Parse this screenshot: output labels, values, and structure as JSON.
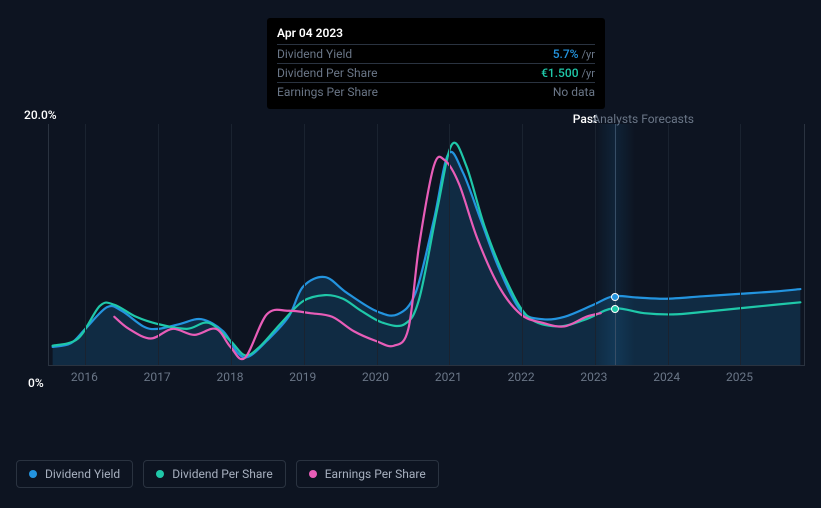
{
  "tooltip": {
    "date": "Apr 04 2023",
    "rows": [
      {
        "label": "Dividend Yield",
        "value": "5.7%",
        "unit": "/yr",
        "cls": "val-yield"
      },
      {
        "label": "Dividend Per Share",
        "value": "€1.500",
        "unit": "/yr",
        "cls": "val-dps"
      },
      {
        "label": "Earnings Per Share",
        "value": "No data",
        "unit": "",
        "cls": "val-eps"
      }
    ]
  },
  "chart": {
    "type": "line",
    "y_axis": {
      "top_label": "20.0%",
      "bottom_label": "0%",
      "ylim": [
        0,
        20
      ]
    },
    "x_axis": {
      "years": [
        "2016",
        "2017",
        "2018",
        "2019",
        "2020",
        "2021",
        "2022",
        "2023",
        "2024",
        "2025"
      ],
      "xlim": [
        2015.5,
        2025.9
      ]
    },
    "sections": {
      "past": "Past",
      "forecasts": "Analysts Forecasts",
      "divider_x": 2023.27
    },
    "cursor_x": 2023.27,
    "background_color": "#0d1421",
    "grid_color": "#1a2330",
    "border_color": "#2a3340",
    "markers": [
      {
        "x": 2023.27,
        "y": 5.7,
        "color": "#2394df"
      },
      {
        "x": 2023.27,
        "y": 4.7,
        "color": "#1fc8a9"
      }
    ],
    "series": [
      {
        "name": "Dividend Yield",
        "color": "#2394df",
        "fill": "rgba(35,148,223,0.18)",
        "width": 2.2,
        "data": [
          [
            2015.55,
            1.5
          ],
          [
            2015.8,
            1.8
          ],
          [
            2016.0,
            3.0
          ],
          [
            2016.3,
            4.8
          ],
          [
            2016.5,
            4.5
          ],
          [
            2016.8,
            3.2
          ],
          [
            2017.0,
            3.0
          ],
          [
            2017.3,
            3.4
          ],
          [
            2017.6,
            3.8
          ],
          [
            2017.9,
            2.8
          ],
          [
            2018.1,
            1.0
          ],
          [
            2018.25,
            0.7
          ],
          [
            2018.5,
            2.0
          ],
          [
            2018.8,
            4.0
          ],
          [
            2019.0,
            6.5
          ],
          [
            2019.3,
            7.3
          ],
          [
            2019.6,
            6.0
          ],
          [
            2020.0,
            4.5
          ],
          [
            2020.3,
            4.2
          ],
          [
            2020.55,
            6.0
          ],
          [
            2020.8,
            12.0
          ],
          [
            2021.0,
            17.5
          ],
          [
            2021.2,
            16.0
          ],
          [
            2021.45,
            12.0
          ],
          [
            2021.7,
            8.0
          ],
          [
            2022.0,
            4.5
          ],
          [
            2022.3,
            3.8
          ],
          [
            2022.6,
            4.0
          ],
          [
            2023.0,
            5.0
          ],
          [
            2023.27,
            5.7
          ],
          [
            2023.6,
            5.6
          ],
          [
            2024.0,
            5.5
          ],
          [
            2024.5,
            5.7
          ],
          [
            2025.0,
            5.9
          ],
          [
            2025.5,
            6.1
          ],
          [
            2025.85,
            6.3
          ]
        ]
      },
      {
        "name": "Dividend Per Share",
        "color": "#1fc8a9",
        "fill": "none",
        "width": 2.2,
        "data": [
          [
            2015.55,
            1.6
          ],
          [
            2015.9,
            2.2
          ],
          [
            2016.2,
            4.9
          ],
          [
            2016.4,
            5.0
          ],
          [
            2016.7,
            4.0
          ],
          [
            2017.0,
            3.4
          ],
          [
            2017.4,
            3.0
          ],
          [
            2017.7,
            3.5
          ],
          [
            2018.0,
            2.0
          ],
          [
            2018.2,
            0.8
          ],
          [
            2018.4,
            1.5
          ],
          [
            2018.7,
            3.5
          ],
          [
            2019.0,
            5.3
          ],
          [
            2019.3,
            5.8
          ],
          [
            2019.55,
            5.5
          ],
          [
            2019.8,
            4.5
          ],
          [
            2020.1,
            3.5
          ],
          [
            2020.4,
            3.4
          ],
          [
            2020.6,
            5.5
          ],
          [
            2020.85,
            13.0
          ],
          [
            2021.05,
            18.3
          ],
          [
            2021.25,
            16.5
          ],
          [
            2021.5,
            11.5
          ],
          [
            2021.8,
            7.0
          ],
          [
            2022.1,
            4.0
          ],
          [
            2022.5,
            3.2
          ],
          [
            2022.9,
            3.8
          ],
          [
            2023.27,
            4.7
          ],
          [
            2023.7,
            4.3
          ],
          [
            2024.1,
            4.2
          ],
          [
            2024.5,
            4.4
          ],
          [
            2025.0,
            4.7
          ],
          [
            2025.5,
            5.0
          ],
          [
            2025.85,
            5.2
          ]
        ]
      },
      {
        "name": "Earnings Per Share",
        "color": "#e85db8",
        "fill": "none",
        "width": 2.2,
        "data": [
          [
            2016.4,
            4.0
          ],
          [
            2016.6,
            3.0
          ],
          [
            2016.9,
            2.2
          ],
          [
            2017.2,
            3.0
          ],
          [
            2017.5,
            2.5
          ],
          [
            2017.8,
            3.0
          ],
          [
            2018.0,
            1.5
          ],
          [
            2018.2,
            0.6
          ],
          [
            2018.5,
            4.2
          ],
          [
            2018.8,
            4.5
          ],
          [
            2019.1,
            4.3
          ],
          [
            2019.4,
            4.0
          ],
          [
            2019.7,
            2.8
          ],
          [
            2020.0,
            2.0
          ],
          [
            2020.25,
            1.6
          ],
          [
            2020.45,
            3.0
          ],
          [
            2020.6,
            10.0
          ],
          [
            2020.8,
            16.5
          ],
          [
            2020.95,
            17.0
          ],
          [
            2021.15,
            15.0
          ],
          [
            2021.4,
            10.5
          ],
          [
            2021.7,
            6.5
          ],
          [
            2022.0,
            4.2
          ],
          [
            2022.3,
            3.5
          ],
          [
            2022.6,
            3.2
          ],
          [
            2022.9,
            4.0
          ],
          [
            2023.1,
            4.3
          ]
        ]
      }
    ]
  },
  "legend": [
    {
      "label": "Dividend Yield",
      "color": "#2394df"
    },
    {
      "label": "Dividend Per Share",
      "color": "#1fc8a9"
    },
    {
      "label": "Earnings Per Share",
      "color": "#e85db8"
    }
  ]
}
